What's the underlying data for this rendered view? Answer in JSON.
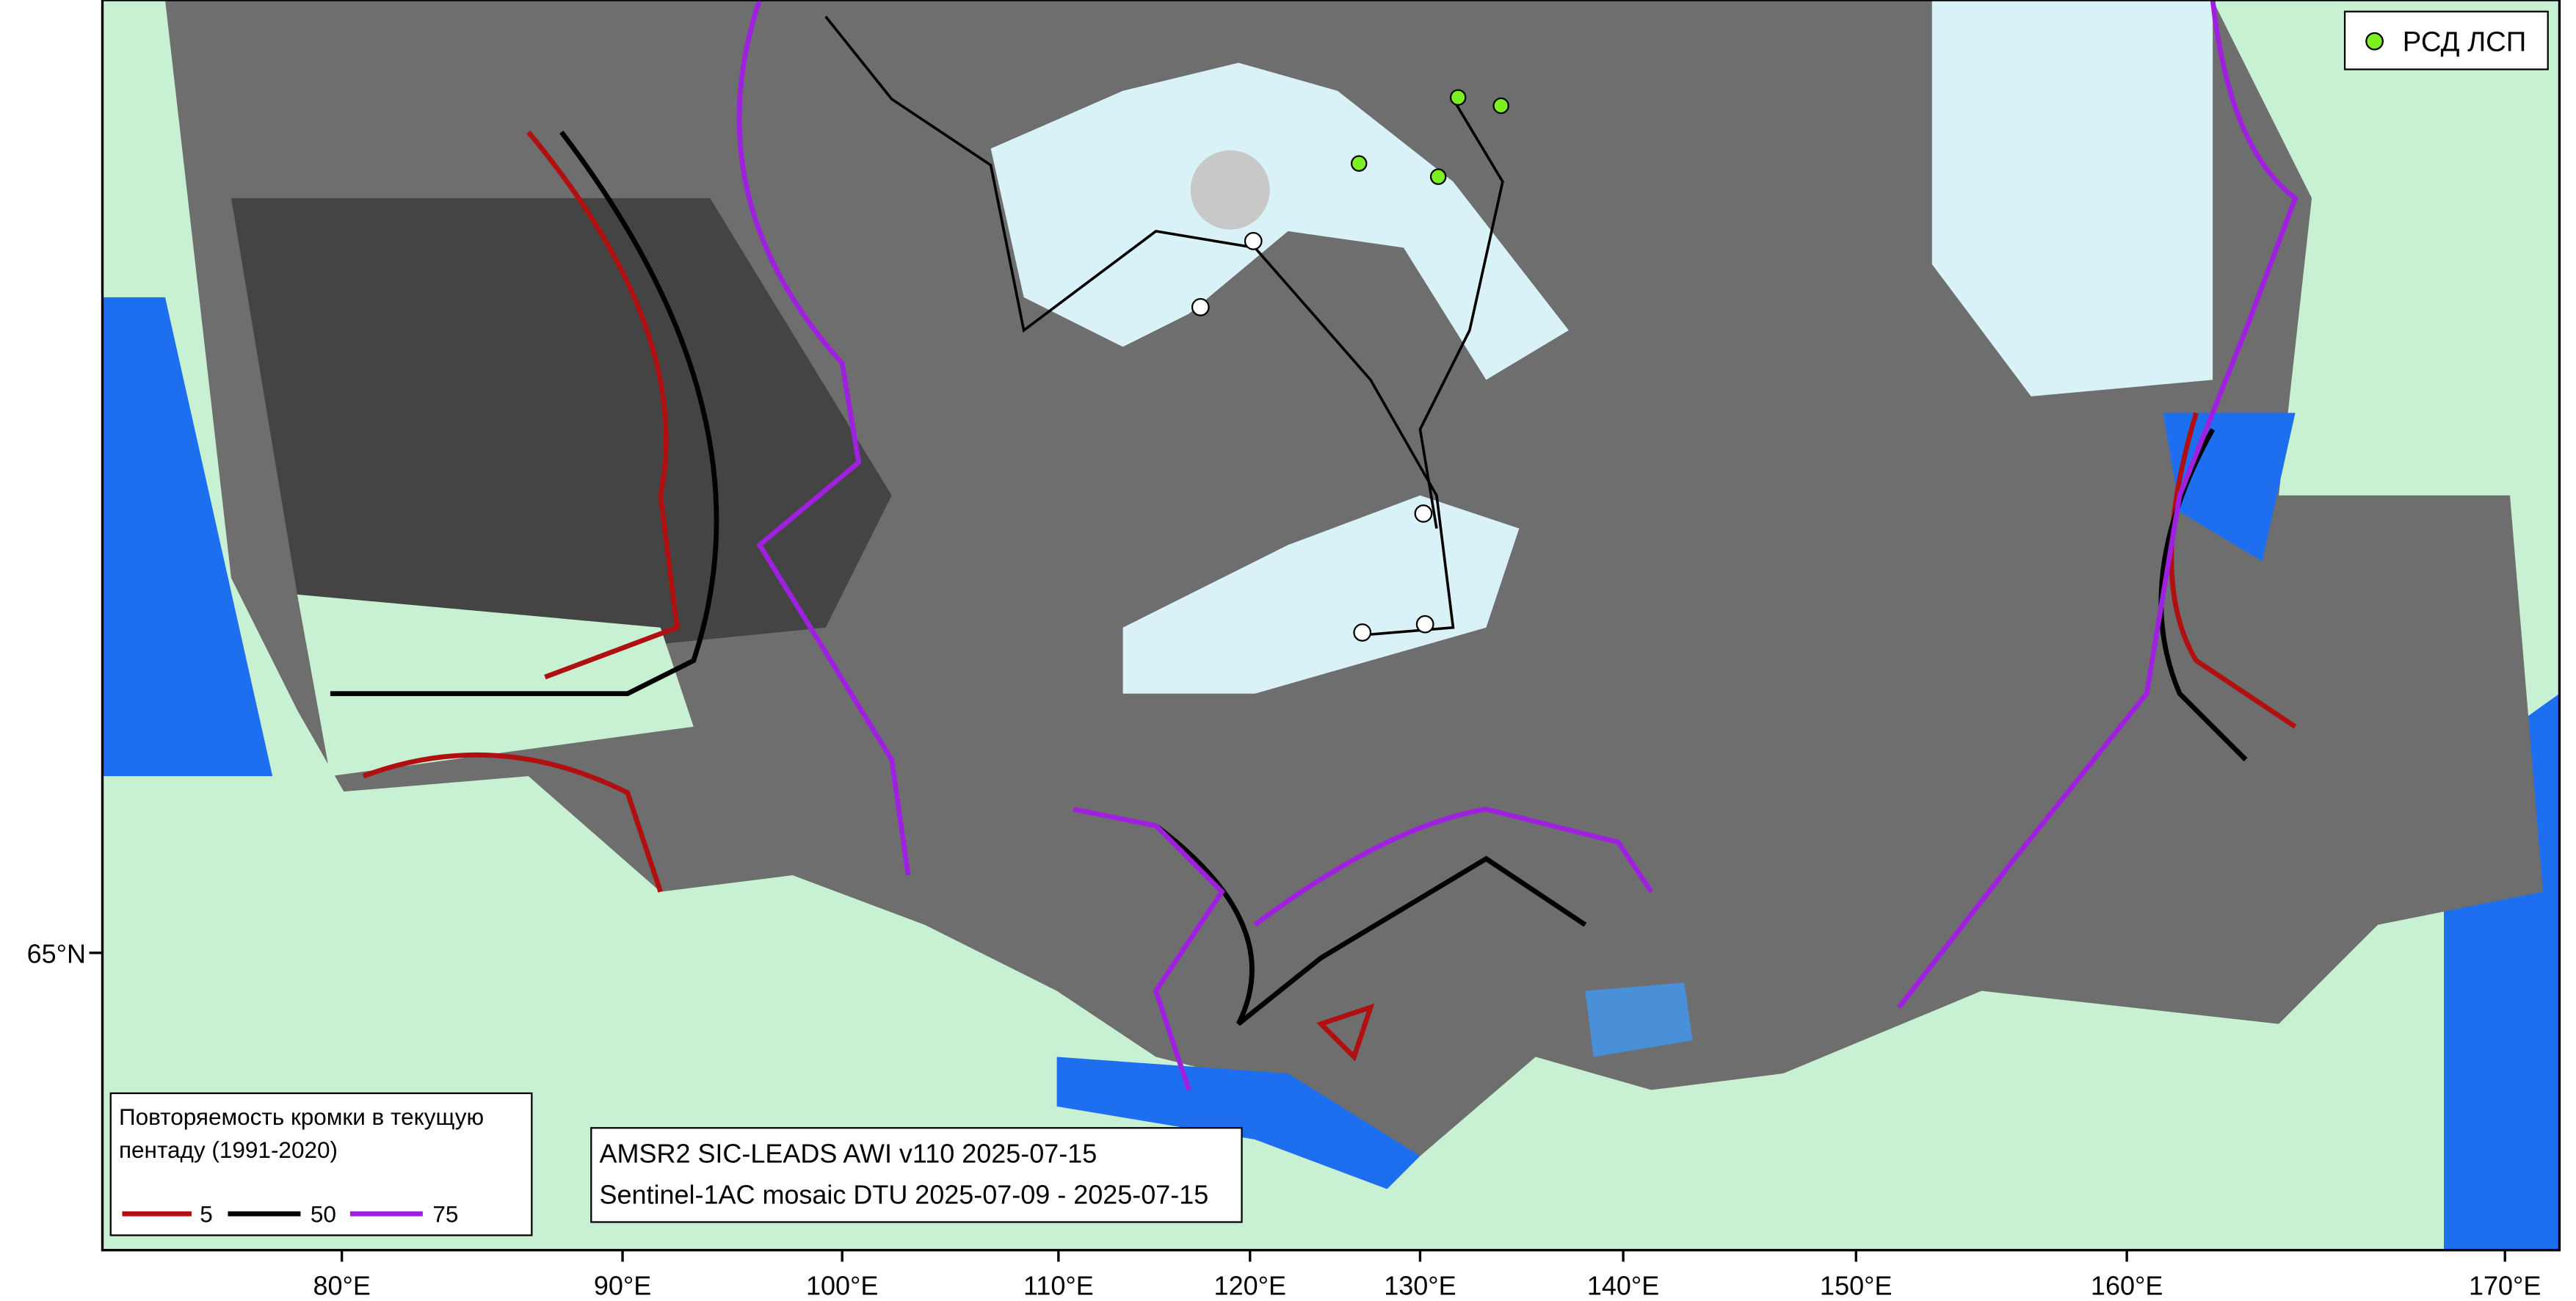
{
  "legend_edge": {
    "title": "Повторяемость кромки в текущую пентаду (1991-2020)",
    "items": [
      "5",
      "50",
      "75"
    ]
  },
  "legend_stations": {
    "label": "РСД ЛСП"
  },
  "info": {
    "lines": [
      "AMSR2 SIC-LEADS AWI v110 2025-07-15",
      "Sentinel-1AC mosaic DTU 2025-07-09 - 2025-07-15"
    ]
  },
  "axis_labels": {
    "bottom": [
      "80°E",
      "90°E",
      "100°E",
      "110°E",
      "120°E",
      "130°E",
      "140°E",
      "150°E",
      "160°E",
      "170°E"
    ],
    "left": [
      "65°N"
    ]
  }
}
